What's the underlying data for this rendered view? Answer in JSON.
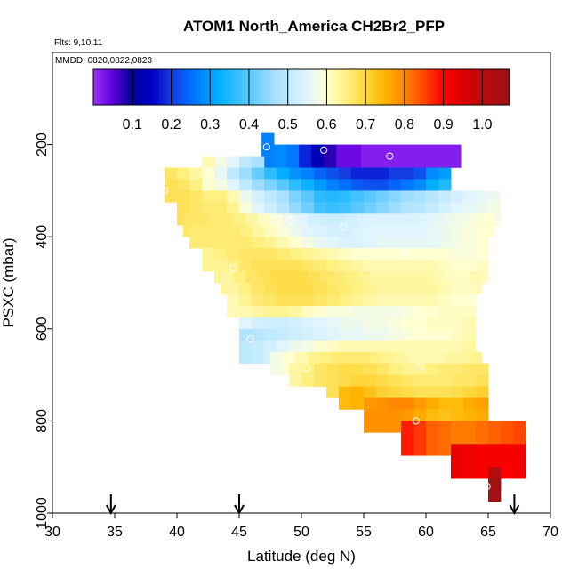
{
  "chart_data": {
    "type": "heatmap",
    "title": "ATOM1 North_America CH2Br2_PFP",
    "flights_label": "Flts: 9,10,11",
    "dates_label": "MMDD: 0820,0822,0823",
    "xlabel": "Latitude (deg N)",
    "ylabel": "PSXC (mbar)",
    "xlim": [
      30,
      70
    ],
    "ylim": [
      1000,
      0
    ],
    "x_ticks": [
      "30",
      "35",
      "40",
      "45",
      "50",
      "55",
      "60",
      "65",
      "70"
    ],
    "y_ticks": [
      "200",
      "400",
      "600",
      "800",
      "1000"
    ],
    "colorbar": {
      "range": [
        0.0,
        1.07
      ],
      "ticks": [
        "0.1",
        "0.2",
        "0.3",
        "0.4",
        "0.5",
        "0.6",
        "0.7",
        "0.8",
        "0.9",
        "1.0"
      ]
    },
    "grid_cell": {
      "lat_width": 1.0,
      "pres_height": 50
    },
    "arrow_latitudes": [
      34.7,
      45.0,
      67.1
    ],
    "rows": [
      {
        "p": 200,
        "lat_start": 46.8,
        "values": [
          0.27
        ]
      },
      {
        "p": 225,
        "lat_start": 46.8,
        "values": [
          0.27,
          0.28,
          0.26,
          0.18,
          0.13,
          0.08,
          0.04,
          0.04,
          0.02,
          0.02,
          0.02,
          0.02,
          0.02,
          0.02,
          0.02,
          0.02
        ]
      },
      {
        "p": 250,
        "lat_start": 42.0,
        "values": [
          0.62,
          0.58,
          0.55,
          0.5,
          0.47
        ]
      },
      {
        "p": 275,
        "lat_start": 39.0,
        "values": [
          0.67,
          0.65,
          0.63,
          0.6,
          0.56,
          0.5,
          0.46,
          0.41,
          0.36,
          0.32,
          0.29,
          0.27,
          0.24,
          0.22,
          0.2,
          0.18,
          0.18,
          0.18,
          0.2,
          0.2,
          0.22,
          0.28,
          0.3
        ]
      },
      {
        "p": 300,
        "lat_start": 39.0,
        "values": [
          0.68,
          0.67,
          0.65,
          0.6,
          0.58,
          0.55,
          0.5,
          0.46,
          0.43,
          0.4,
          0.36,
          0.33,
          0.3,
          0.27,
          0.25,
          0.23,
          0.22,
          0.22,
          0.24,
          0.26,
          0.28,
          0.32,
          0.35
        ]
      },
      {
        "p": 325,
        "lat_start": 40.0,
        "values": [
          0.68,
          0.67,
          0.65,
          0.65,
          0.62,
          0.57,
          0.53,
          0.5,
          0.47,
          0.43,
          0.4,
          0.36,
          0.35,
          0.36,
          0.38,
          0.4,
          0.42,
          0.44,
          0.46,
          0.47,
          0.49,
          0.51,
          0.53,
          0.55,
          0.56,
          0.57
        ]
      },
      {
        "p": 350,
        "lat_start": 40.0,
        "values": [
          0.68,
          0.67,
          0.66,
          0.66,
          0.64,
          0.59,
          0.55,
          0.52,
          0.49,
          0.45,
          0.42,
          0.38,
          0.37,
          0.38,
          0.4,
          0.42,
          0.44,
          0.46,
          0.48,
          0.49,
          0.51,
          0.53,
          0.55,
          0.56,
          0.57,
          0.58
        ]
      },
      {
        "p": 375,
        "lat_start": 40.5,
        "values": [
          0.67,
          0.67,
          0.66,
          0.66,
          0.65,
          0.63,
          0.61,
          0.59,
          0.57,
          0.55,
          0.53,
          0.52,
          0.52,
          0.53,
          0.54,
          0.54,
          0.54,
          0.54,
          0.54,
          0.55,
          0.56,
          0.57,
          0.58,
          0.59,
          0.6
        ]
      },
      {
        "p": 400,
        "lat_start": 41.0,
        "values": [
          0.66,
          0.66,
          0.66,
          0.66,
          0.65,
          0.63,
          0.61,
          0.59,
          0.57,
          0.55,
          0.54,
          0.53,
          0.53,
          0.54,
          0.55,
          0.55,
          0.55,
          0.55,
          0.55,
          0.56,
          0.57,
          0.58,
          0.59,
          0.6
        ]
      },
      {
        "p": 425,
        "lat_start": 42.0,
        "values": [
          0.66,
          0.66,
          0.66,
          0.66,
          0.65,
          0.64,
          0.62,
          0.6,
          0.58,
          0.56,
          0.55,
          0.54,
          0.54,
          0.55,
          0.56,
          0.56,
          0.56,
          0.56,
          0.56,
          0.57,
          0.58,
          0.59,
          0.6
        ]
      },
      {
        "p": 450,
        "lat_start": 42.0,
        "values": [
          0.64,
          0.65,
          0.66,
          0.67,
          0.67,
          0.67,
          0.66,
          0.65,
          0.64,
          0.63,
          0.62,
          0.61,
          0.6,
          0.6,
          0.6,
          0.6,
          0.6,
          0.6,
          0.6,
          0.6,
          0.59,
          0.59,
          0.6
        ]
      },
      {
        "p": 475,
        "lat_start": 43.0,
        "values": [
          0.64,
          0.65,
          0.67,
          0.68,
          0.68,
          0.68,
          0.68,
          0.67,
          0.66,
          0.65,
          0.64,
          0.63,
          0.62,
          0.62,
          0.62,
          0.62,
          0.62,
          0.62,
          0.61,
          0.6,
          0.6,
          0.61
        ]
      },
      {
        "p": 500,
        "lat_start": 43.5,
        "values": [
          0.63,
          0.65,
          0.67,
          0.68,
          0.69,
          0.69,
          0.69,
          0.68,
          0.67,
          0.66,
          0.65,
          0.64,
          0.63,
          0.63,
          0.63,
          0.63,
          0.63,
          0.62,
          0.61,
          0.61,
          0.62
        ]
      },
      {
        "p": 525,
        "lat_start": 44.0,
        "values": [
          0.63,
          0.65,
          0.67,
          0.68,
          0.69,
          0.69,
          0.69,
          0.68,
          0.67,
          0.66,
          0.65,
          0.64,
          0.63,
          0.63,
          0.63,
          0.63,
          0.63,
          0.62,
          0.61,
          0.61
        ]
      },
      {
        "p": 550,
        "lat_start": 44.0,
        "values": [
          0.62,
          0.64,
          0.66,
          0.67,
          0.68,
          0.68,
          0.68,
          0.67,
          0.66,
          0.65,
          0.64,
          0.63,
          0.62,
          0.62,
          0.62,
          0.62,
          0.62,
          0.61,
          0.6,
          0.6
        ]
      },
      {
        "p": 575,
        "lat_start": 45.0,
        "values": [
          0.62,
          0.63,
          0.64,
          0.64,
          0.63,
          0.61,
          0.6,
          0.59,
          0.59,
          0.58,
          0.58,
          0.58,
          0.58,
          0.59,
          0.6,
          0.6,
          0.61,
          0.61,
          0.61
        ]
      },
      {
        "p": 600,
        "lat_start": 45.0,
        "values": [
          0.55,
          0.53,
          0.52,
          0.52,
          0.53,
          0.54,
          0.55,
          0.56,
          0.57,
          0.57,
          0.58,
          0.58,
          0.59,
          0.6,
          0.6,
          0.61,
          0.61,
          0.61,
          0.62
        ]
      },
      {
        "p": 625,
        "lat_start": 45.0,
        "values": [
          0.48,
          0.49,
          0.5,
          0.51,
          0.52,
          0.53,
          0.54,
          0.55,
          0.56,
          0.56,
          0.57,
          0.57,
          0.58,
          0.59,
          0.6,
          0.6,
          0.6,
          0.61,
          0.62
        ]
      },
      {
        "p": 650,
        "lat_start": 45.0,
        "values": [
          0.5,
          0.51,
          0.53,
          0.55,
          0.57,
          0.58,
          0.6,
          0.61,
          0.62,
          0.62,
          0.62,
          0.62,
          0.62,
          0.62,
          0.62,
          0.62,
          0.62,
          0.62,
          0.63
        ]
      },
      {
        "p": 675,
        "lat_start": 47.5,
        "values": [
          0.58,
          0.6,
          0.62,
          0.64,
          0.65,
          0.66,
          0.66,
          0.66,
          0.65,
          0.64,
          0.63,
          0.62,
          0.62,
          0.62,
          0.63,
          0.63,
          0.64
        ]
      },
      {
        "p": 700,
        "lat_start": 49.0,
        "values": [
          0.63,
          0.65,
          0.67,
          0.68,
          0.69,
          0.69,
          0.68,
          0.67,
          0.65,
          0.64,
          0.64,
          0.65,
          0.66,
          0.66,
          0.67,
          0.67
        ]
      },
      {
        "p": 725,
        "lat_start": 52.0,
        "values": [
          0.68,
          0.69,
          0.7,
          0.7,
          0.69,
          0.68,
          0.67,
          0.66,
          0.66,
          0.66,
          0.67,
          0.67,
          0.68
        ]
      },
      {
        "p": 750,
        "lat_start": 53.0,
        "values": [
          0.74,
          0.75,
          0.73,
          0.71,
          0.7,
          0.69,
          0.68,
          0.68,
          0.68,
          0.69,
          0.7,
          0.71
        ]
      },
      {
        "p": 775,
        "lat_start": 55.0,
        "values": [
          0.78,
          0.79,
          0.8,
          0.8,
          0.78,
          0.76,
          0.74,
          0.74,
          0.76,
          0.77
        ]
      },
      {
        "p": 800,
        "lat_start": 55.0,
        "values": [
          0.79,
          0.79,
          0.79,
          0.78,
          0.76,
          0.74,
          0.73,
          0.74,
          0.75,
          0.76
        ]
      },
      {
        "p": 825,
        "lat_start": 58.0,
        "values": [
          0.88,
          0.86,
          0.83,
          0.82,
          0.81,
          0.81,
          0.82,
          0.83,
          0.84,
          0.85
        ]
      },
      {
        "p": 850,
        "lat_start": 58.0,
        "values": [
          0.88,
          0.86,
          0.83,
          0.82,
          0.81,
          0.81,
          0.82,
          0.83,
          0.84,
          0.85
        ]
      },
      {
        "p": 875,
        "lat_start": 62.0,
        "values": [
          0.93,
          0.92,
          0.91,
          0.91,
          0.91,
          0.92
        ]
      },
      {
        "p": 900,
        "lat_start": 62.0,
        "values": [
          0.93,
          0.92,
          0.91,
          0.91,
          0.91,
          0.92
        ]
      },
      {
        "p": 925,
        "lat_start": 65.0,
        "values": [
          1.02
        ]
      },
      {
        "p": 950,
        "lat_start": 65.0,
        "values": [
          1.05
        ]
      }
    ],
    "sample_points": [
      {
        "lat": 47.2,
        "p": 205
      },
      {
        "lat": 51.8,
        "p": 212
      },
      {
        "lat": 57.1,
        "p": 225
      },
      {
        "lat": 39.0,
        "p": 300
      },
      {
        "lat": 49.2,
        "p": 365
      },
      {
        "lat": 53.4,
        "p": 378
      },
      {
        "lat": 65.8,
        "p": 362
      },
      {
        "lat": 58.3,
        "p": 435
      },
      {
        "lat": 64.4,
        "p": 448
      },
      {
        "lat": 44.5,
        "p": 468
      },
      {
        "lat": 45.9,
        "p": 622
      },
      {
        "lat": 50.4,
        "p": 685
      },
      {
        "lat": 59.5,
        "p": 683
      },
      {
        "lat": 59.2,
        "p": 800
      },
      {
        "lat": 65.3,
        "p": 778
      },
      {
        "lat": 64.9,
        "p": 942
      }
    ]
  }
}
